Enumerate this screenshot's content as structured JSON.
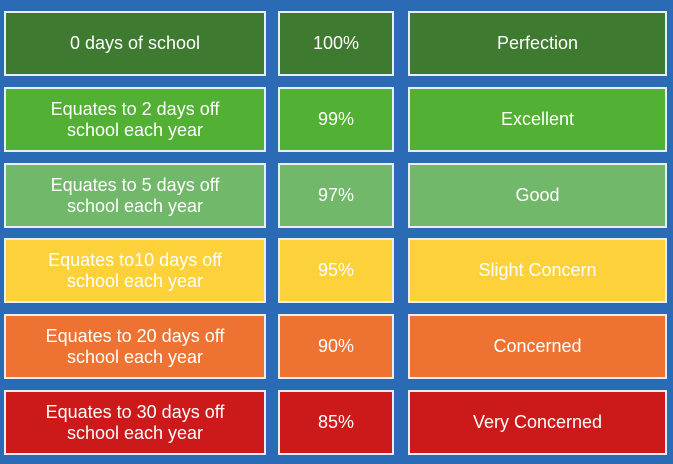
{
  "table": {
    "rows": [
      [
        "0 days of school",
        "100%",
        "Perfection"
      ],
      [
        "Equates to 2 days off\nschool each year",
        "99%",
        "Excellent"
      ],
      [
        "Equates to 5 days off\nschool each year",
        "97%",
        "Good"
      ],
      [
        "Equates to10 days off\nschool each year",
        "95%",
        "Slight Concern"
      ],
      [
        "Equates to 20 days off\nschool each year",
        "90%",
        "Concerned"
      ],
      [
        "Equates to 30 days off\nschool each year",
        "85%",
        "Very Concerned"
      ]
    ]
  }
}
